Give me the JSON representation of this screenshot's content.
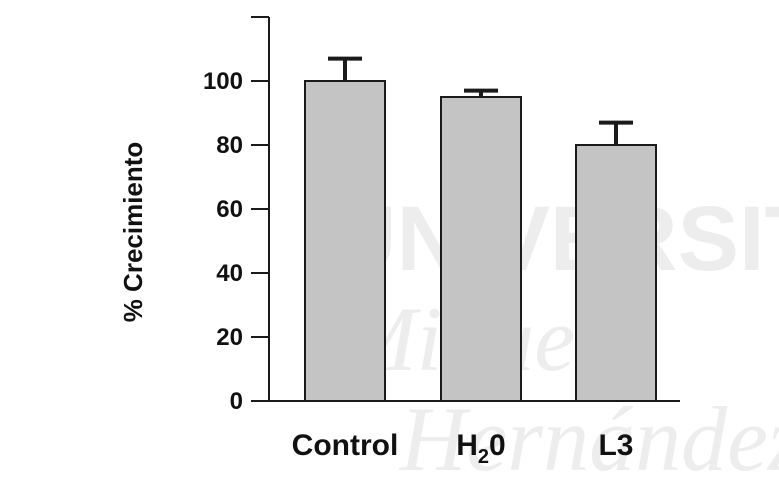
{
  "watermark": {
    "line1": "UNIVERSITAS",
    "line2": "Miguel",
    "line3": "Hernández"
  },
  "colors": {
    "bar_fill": "#c4c4c4",
    "bar_stroke": "#1a1a1a",
    "axis": "#1a1a1a",
    "watermark": "#ededed"
  },
  "chart_data": {
    "type": "bar",
    "categories": [
      "Control",
      "H20",
      "L3"
    ],
    "category_display": [
      {
        "base": "Control",
        "sub": ""
      },
      {
        "base": "H",
        "sub": "2",
        "rest": "0"
      },
      {
        "base": "L3",
        "sub": ""
      }
    ],
    "values": [
      100,
      95,
      80
    ],
    "error": [
      7,
      2,
      7
    ],
    "ylabel": "% Crecimiento",
    "xlabel": "",
    "title": "",
    "ylim": [
      0,
      120
    ],
    "yticks": [
      0,
      20,
      40,
      60,
      80,
      100
    ],
    "grid": false,
    "legend": "none"
  }
}
